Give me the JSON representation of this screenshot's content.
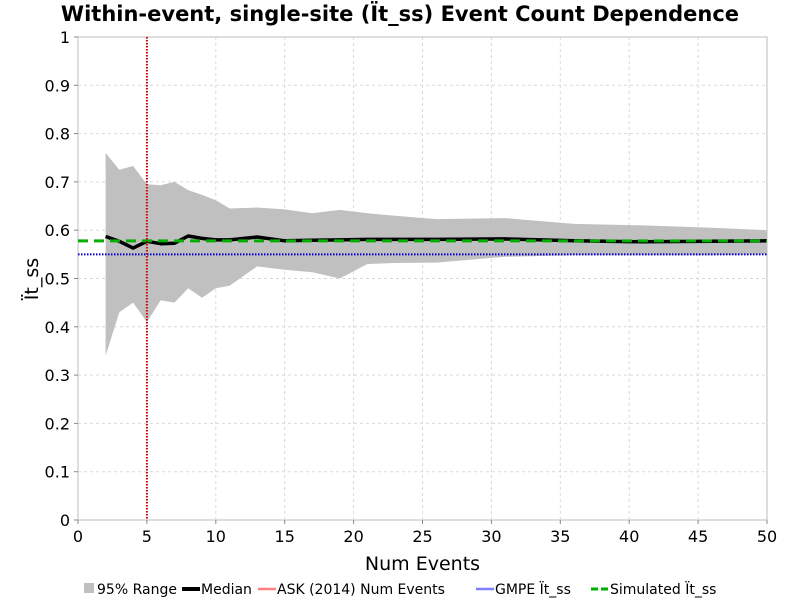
{
  "chart_data": {
    "type": "line",
    "title": "Within-event, single-site (Ït_ss) Event Count Dependence",
    "xlabel": "Num Events",
    "ylabel": "Ït_ss",
    "xlim": [
      0,
      50
    ],
    "ylim": [
      0,
      1
    ],
    "x_ticks": [
      0,
      5,
      10,
      15,
      20,
      25,
      30,
      35,
      40,
      45,
      50
    ],
    "x_tick_labels": [
      "0",
      "5",
      "10",
      "15",
      "20",
      "25",
      "30",
      "35",
      "40",
      "45",
      "50"
    ],
    "y_ticks": [
      0,
      0.1,
      0.2,
      0.3,
      0.4,
      0.5,
      0.6,
      0.7,
      0.8,
      0.9,
      1
    ],
    "y_tick_labels": [
      "0",
      "0.1",
      "0.2",
      "0.3",
      "0.4",
      "0.5",
      "0.6",
      "0.7",
      "0.8",
      "0.9",
      "1"
    ],
    "grid": true,
    "legend_position": "bottom",
    "legend": [
      {
        "label": "95% Range",
        "type": "area",
        "color": "#c0c0c0"
      },
      {
        "label": "Median",
        "type": "line",
        "color": "#000000"
      },
      {
        "label": "ASK (2014) Num Events",
        "type": "line",
        "color": "#ff8080"
      },
      {
        "label": "GMPE Ït_ss",
        "type": "line",
        "color": "#8080ff"
      },
      {
        "label": "Simulated Ït_ss",
        "type": "dashed-line",
        "color": "#00b000"
      }
    ],
    "range_95": {
      "name": "95% Range",
      "color": "#c0c0c0",
      "x": [
        2,
        3,
        4,
        5,
        6,
        7,
        8,
        9,
        10,
        11,
        13,
        15,
        17,
        19,
        21,
        23,
        26,
        31,
        36,
        41,
        46,
        50
      ],
      "lower": [
        0.34,
        0.43,
        0.45,
        0.41,
        0.455,
        0.45,
        0.48,
        0.46,
        0.48,
        0.485,
        0.525,
        0.518,
        0.513,
        0.5,
        0.53,
        0.532,
        0.533,
        0.545,
        0.548,
        0.548,
        0.548,
        0.55
      ],
      "upper": [
        0.76,
        0.725,
        0.733,
        0.695,
        0.693,
        0.7,
        0.683,
        0.673,
        0.662,
        0.645,
        0.647,
        0.643,
        0.635,
        0.642,
        0.635,
        0.63,
        0.623,
        0.625,
        0.613,
        0.61,
        0.605,
        0.6
      ]
    },
    "median": {
      "name": "Median",
      "color": "#000000",
      "x": [
        2,
        3,
        4,
        5,
        6,
        7,
        8,
        9,
        10,
        11,
        13,
        15,
        17,
        19,
        21,
        23,
        26,
        31,
        36,
        41,
        46,
        50
      ],
      "y": [
        0.587,
        0.577,
        0.563,
        0.577,
        0.572,
        0.573,
        0.588,
        0.583,
        0.58,
        0.58,
        0.586,
        0.578,
        0.579,
        0.58,
        0.581,
        0.581,
        0.581,
        0.582,
        0.578,
        0.576,
        0.577,
        0.578
      ]
    },
    "ask2014_num_events": {
      "name": "ASK (2014) Num Events",
      "color": "#cc0000",
      "x": 5
    },
    "gmpe_phi_ss": {
      "name": "GMPE Ït_ss",
      "color": "#0000cc",
      "y": 0.55
    },
    "simulated_phi_ss": {
      "name": "Simulated Ït_ss",
      "color": "#00b000",
      "y": 0.578
    }
  }
}
